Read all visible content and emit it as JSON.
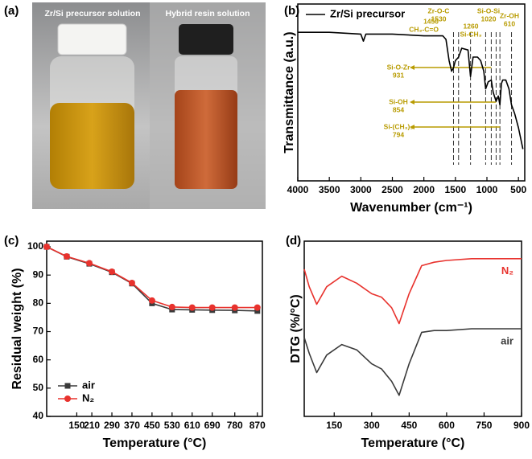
{
  "photo": {
    "label": "(a)",
    "captions": [
      "Zr/Si precursor solution",
      "Hybrid resin solution"
    ]
  },
  "chart_data": [
    {
      "type": "line",
      "label": "(b)",
      "xlabel": "Wavenumber (cm⁻¹)",
      "ylabel": "Transmittance (a.u.)",
      "xlim": [
        4000,
        400
      ],
      "xticks": [
        4000,
        3500,
        3000,
        2500,
        2000,
        1500,
        1000,
        500
      ],
      "ylim": [
        0,
        100
      ],
      "x": [
        4000,
        3500,
        3000,
        2960,
        2920,
        2500,
        2000,
        1700,
        1650,
        1600,
        1560,
        1530,
        1500,
        1450,
        1400,
        1300,
        1260,
        1220,
        1150,
        1100,
        1050,
        1020,
        980,
        931,
        900,
        854,
        820,
        794,
        770,
        750,
        700,
        650,
        610,
        560,
        500,
        430
      ],
      "series": [
        {
          "name": "Zr/Si precursor",
          "color": "#000000",
          "values": [
            84,
            84,
            83,
            79,
            83,
            83,
            82,
            82,
            80,
            68,
            62,
            64,
            68,
            70,
            75,
            74,
            59,
            70,
            70,
            68,
            62,
            52,
            56,
            57,
            50,
            45,
            48,
            43,
            55,
            57,
            57,
            52,
            43,
            38,
            30,
            18
          ]
        }
      ],
      "legend": "upper left",
      "annotation_color": "#b89b00",
      "annotations": [
        {
          "lines": [
            "1450",
            "CH₃-C=O"
          ],
          "x": 1450
        },
        {
          "lines": [
            "Zr-O-C",
            "1530"
          ],
          "x": 1530
        },
        {
          "lines": [
            "1260",
            "Si-CH₃"
          ],
          "x": 1260
        },
        {
          "lines": [
            "Si-O-Si",
            "1020"
          ],
          "x": 1020
        },
        {
          "lines": [
            "Zr-OH",
            "610"
          ],
          "x": 610
        },
        {
          "lines": [
            "Si-O-Zr",
            "931"
          ],
          "x": 931
        },
        {
          "lines": [
            "Si-OH",
            "854"
          ],
          "x": 854
        },
        {
          "lines": [
            "Si-(CH₃)₃",
            "794"
          ],
          "x": 794
        }
      ]
    },
    {
      "type": "line",
      "label": "(c)",
      "xlabel": "Temperature (°C)",
      "ylabel": "Residual weight (%)",
      "xlim": [
        30,
        890
      ],
      "xticks": [
        150,
        210,
        290,
        370,
        450,
        530,
        610,
        690,
        780,
        870
      ],
      "ylim": [
        40,
        102
      ],
      "yticks": [
        40,
        50,
        60,
        70,
        80,
        90,
        100
      ],
      "x": [
        30,
        110,
        200,
        290,
        370,
        450,
        530,
        610,
        690,
        780,
        870
      ],
      "series": [
        {
          "name": "air",
          "color": "#3a3a3a",
          "marker": "square",
          "values": [
            100,
            96.5,
            94,
            91,
            87,
            80,
            77.8,
            77.7,
            77.6,
            77.5,
            77.3
          ]
        },
        {
          "name": "N₂",
          "color": "#e8322d",
          "marker": "circle",
          "values": [
            100,
            96.6,
            94.2,
            91.2,
            87.2,
            81,
            78.7,
            78.5,
            78.5,
            78.5,
            78.5
          ]
        }
      ],
      "legend": "lower left"
    },
    {
      "type": "line",
      "label": "(d)",
      "xlabel": "Temperature (°C)",
      "ylabel": "DTG (%/°C)",
      "xlim": [
        30,
        900
      ],
      "xticks": [
        150,
        300,
        450,
        600,
        750,
        900
      ],
      "ylim": [
        0,
        100
      ],
      "x": [
        30,
        50,
        80,
        120,
        180,
        240,
        300,
        340,
        380,
        410,
        450,
        500,
        550,
        600,
        700,
        800,
        900
      ],
      "series": [
        {
          "name": "N₂",
          "color": "#e8322d",
          "values": [
            84,
            74,
            64,
            74,
            80,
            76,
            70,
            68,
            62,
            53,
            70,
            86,
            88,
            89,
            90,
            90,
            90
          ]
        },
        {
          "name": "air",
          "color": "#3a3a3a",
          "values": [
            45,
            36,
            25,
            35,
            41,
            38,
            30,
            27,
            20,
            12,
            30,
            48,
            49,
            49,
            50,
            50,
            50
          ]
        }
      ],
      "legend": "inline"
    }
  ]
}
